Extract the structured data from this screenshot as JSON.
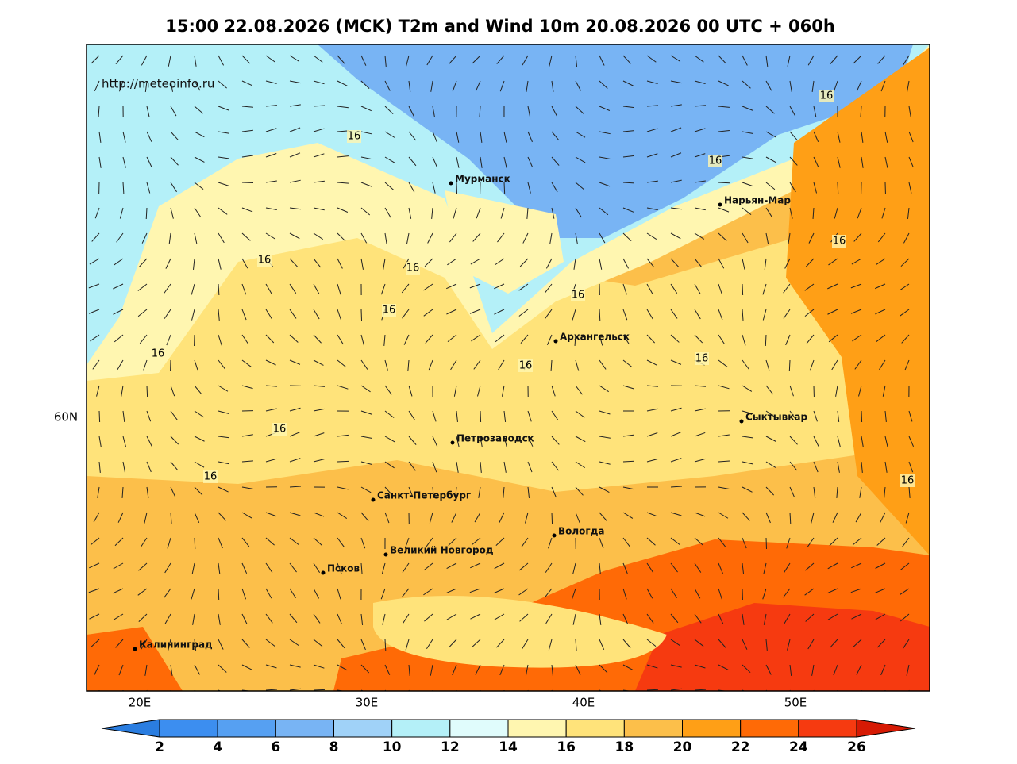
{
  "title": "15:00 22.08.2026 (MCK) T2m and Wind 10m 20.08.2026 00 UTC + 060h",
  "url": "http://meteoinfo.ru",
  "cities": [
    "Мурманск",
    "Нарьян-Мар",
    "Архангельск",
    "Сыктывкар",
    "Петрозаводск",
    "Санкт-Петербург",
    "Вологда",
    "Великий Новгород",
    "Псков",
    "Калининград"
  ],
  "contour_labels": [
    16,
    16,
    16,
    16,
    16,
    16,
    16,
    16,
    16,
    16,
    16,
    16,
    16,
    16
  ],
  "lon_labels": [
    "20E",
    "30E",
    "40E",
    "50E"
  ],
  "lat_labels": [
    "60N"
  ],
  "colorbar": {
    "ticks": [
      2,
      4,
      6,
      8,
      10,
      12,
      14,
      16,
      18,
      20,
      22,
      24,
      26
    ],
    "colors": [
      "#2a7de0",
      "#3c8ef0",
      "#56a0f2",
      "#78b4f4",
      "#a0d2f8",
      "#b4f0f8",
      "#e0fcfc",
      "#fff6b0",
      "#ffe37a",
      "#fcbf4a",
      "#ff9f16",
      "#ff6a06",
      "#f63a10",
      "#d61a04"
    ]
  }
}
